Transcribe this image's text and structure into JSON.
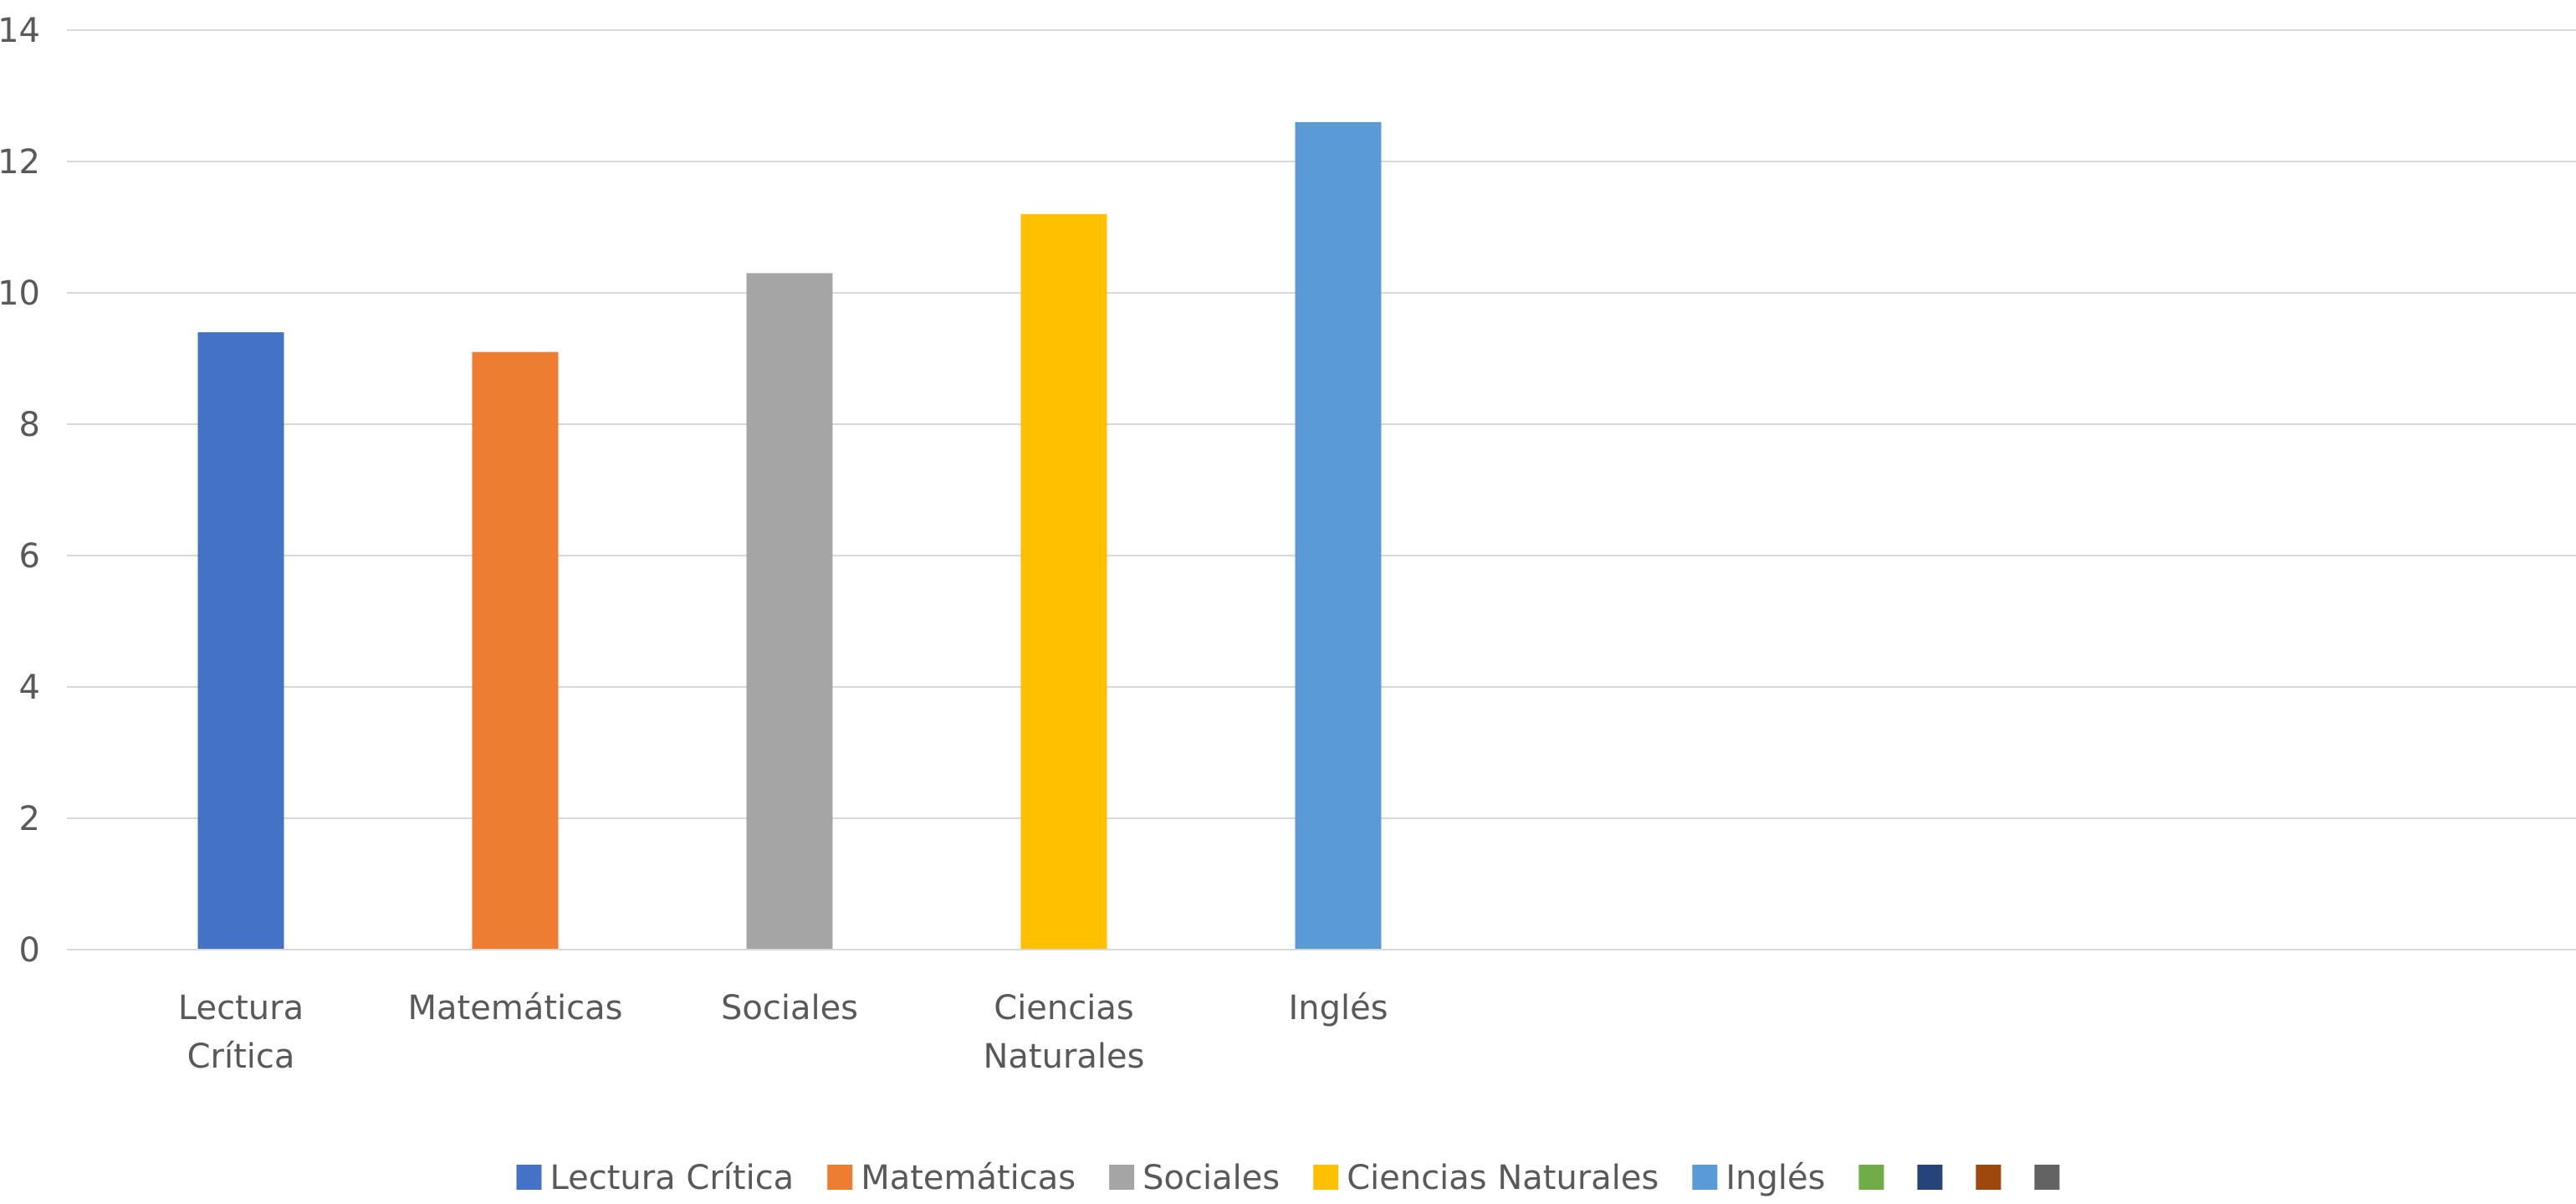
{
  "chart_data": {
    "type": "bar",
    "categories": [
      [
        "Lectura",
        "Crítica"
      ],
      [
        "Matemáticas"
      ],
      [
        "Sociales"
      ],
      [
        "Ciencias",
        "Naturales"
      ],
      [
        "Inglés"
      ]
    ],
    "values": [
      9.4,
      9.1,
      10.3,
      11.2,
      12.6
    ],
    "colors": [
      "#4472C4",
      "#ED7D31",
      "#A5A5A5",
      "#FFC000",
      "#5B9BD5"
    ],
    "yticks": [
      "0",
      "2",
      "4",
      "6",
      "8",
      "10",
      "12",
      "14"
    ],
    "ylim": [
      0,
      14
    ],
    "grid": true,
    "legend_position": "bottom",
    "legend": [
      {
        "label": "Lectura Crítica",
        "color": "#4472C4"
      },
      {
        "label": "Matemáticas",
        "color": "#ED7D31"
      },
      {
        "label": "Sociales",
        "color": "#A5A5A5"
      },
      {
        "label": "Ciencias Naturales",
        "color": "#FFC000"
      },
      {
        "label": "Inglés",
        "color": "#5B9BD5"
      },
      {
        "label": "",
        "color": "#70AD47"
      },
      {
        "label": "",
        "color": "#264478"
      },
      {
        "label": "",
        "color": "#9E480E"
      },
      {
        "label": "",
        "color": "#636363"
      }
    ]
  }
}
